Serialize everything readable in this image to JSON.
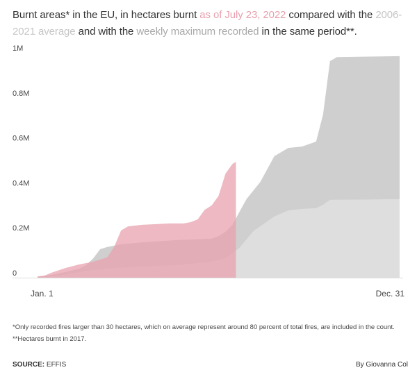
{
  "title": {
    "part1": "Burnt areas* in the EU, in hectares burnt ",
    "highlight_2022": "as of July 23, 2022",
    "part2": " compared with the ",
    "highlight_avg": "2006-2021 average",
    "part3": " and with the ",
    "highlight_max": "weekly maximum recorded",
    "part4": " in the same period**."
  },
  "colors": {
    "series_2022": "#e8a1ae",
    "series_avg": "#dedede",
    "series_max": "#cfcfcf",
    "text": "#333333"
  },
  "chart_data": {
    "type": "area",
    "title": "Burnt areas* in the EU, in hectares burnt as of July 23, 2022 compared with the 2006-2021 average and with the weekly maximum recorded in the same period**.",
    "xlabel": "",
    "ylabel": "",
    "x_unit": "week of year",
    "xlim": [
      0,
      52
    ],
    "ylim": [
      0,
      1000000
    ],
    "x_tick_labels": [
      "Jan. 1",
      "Dec. 31"
    ],
    "y_ticks": [
      {
        "value": 0,
        "label": "0"
      },
      {
        "value": 200000,
        "label": "0.2M"
      },
      {
        "value": 400000,
        "label": "0.4M"
      },
      {
        "value": 600000,
        "label": "0.6M"
      },
      {
        "value": 800000,
        "label": "0.8M"
      },
      {
        "value": 1000000,
        "label": "1M"
      }
    ],
    "grid": false,
    "series": [
      {
        "name": "Weekly maximum recorded (2017)",
        "color": "#cfcfcf",
        "points": [
          [
            0,
            5000
          ],
          [
            2,
            12000
          ],
          [
            4,
            25000
          ],
          [
            6,
            40000
          ],
          [
            7,
            56000
          ],
          [
            8,
            86000
          ],
          [
            9,
            127000
          ],
          [
            10,
            136000
          ],
          [
            12,
            148000
          ],
          [
            15,
            157000
          ],
          [
            20,
            167000
          ],
          [
            25,
            173000
          ],
          [
            26,
            185000
          ],
          [
            27,
            204000
          ],
          [
            28,
            235000
          ],
          [
            29,
            293000
          ],
          [
            30,
            349000
          ],
          [
            32,
            426000
          ],
          [
            34,
            540000
          ],
          [
            36,
            577000
          ],
          [
            38,
            583000
          ],
          [
            40,
            605000
          ],
          [
            41,
            725000
          ],
          [
            42,
            963000
          ],
          [
            43,
            981000
          ],
          [
            52,
            985000
          ]
        ]
      },
      {
        "name": "2006-2021 average",
        "color": "#dedede",
        "points": [
          [
            0,
            0
          ],
          [
            3,
            9000
          ],
          [
            7,
            31000
          ],
          [
            11,
            43000
          ],
          [
            15,
            49000
          ],
          [
            20,
            56000
          ],
          [
            25,
            71000
          ],
          [
            27,
            86000
          ],
          [
            29,
            133000
          ],
          [
            31,
            207000
          ],
          [
            34,
            272000
          ],
          [
            36,
            299000
          ],
          [
            38,
            306000
          ],
          [
            40,
            309000
          ],
          [
            41,
            324000
          ],
          [
            42,
            346000
          ],
          [
            52,
            349000
          ]
        ]
      },
      {
        "name": "2022 (as of July 23)",
        "color": "#e8a1ae",
        "points": [
          [
            0,
            5000
          ],
          [
            1,
            9000
          ],
          [
            2,
            22000
          ],
          [
            4,
            43000
          ],
          [
            6,
            59000
          ],
          [
            8,
            71000
          ],
          [
            10,
            90000
          ],
          [
            11,
            136000
          ],
          [
            12,
            210000
          ],
          [
            13,
            228000
          ],
          [
            15,
            235000
          ],
          [
            17,
            238000
          ],
          [
            19,
            241000
          ],
          [
            21,
            241000
          ],
          [
            22,
            247000
          ],
          [
            23,
            259000
          ],
          [
            24,
            302000
          ],
          [
            25,
            321000
          ],
          [
            26,
            364000
          ],
          [
            27,
            463000
          ],
          [
            28,
            506000
          ],
          [
            28.5,
            515000
          ]
        ]
      }
    ]
  },
  "notes": {
    "note1": "*Only recorded fires larger than 30 hectares, which on average represent around 80 percent of total fires, are included in the count.",
    "note2": "**Hectares burnt in 2017."
  },
  "footer": {
    "source_label": "SOURCE:",
    "source_value": " EFFIS",
    "byline": "By Giovanna Col"
  }
}
